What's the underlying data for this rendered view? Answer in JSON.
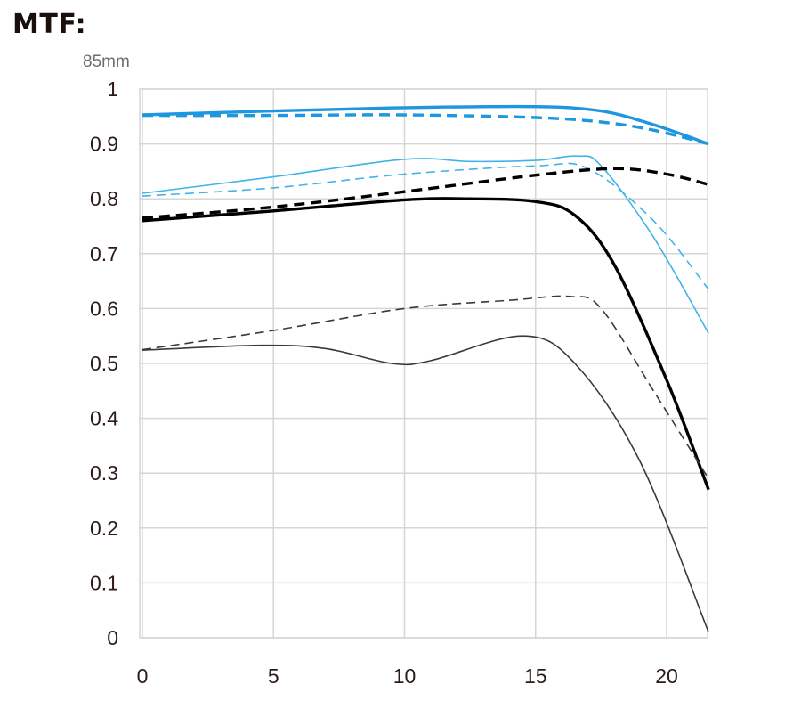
{
  "title": "MTF:",
  "chart_data": {
    "type": "line",
    "subtitle": "85mm",
    "xlabel": "",
    "ylabel": "",
    "xlim": [
      0,
      21.6
    ],
    "ylim": [
      0,
      1
    ],
    "xticks": [
      0,
      5,
      10,
      15,
      20
    ],
    "xtick_labels": [
      "0",
      "5",
      "10",
      "15",
      "20"
    ],
    "yticks": [
      0,
      0.1,
      0.2,
      0.3,
      0.4,
      0.5,
      0.6,
      0.7,
      0.8,
      0.9,
      1
    ],
    "ytick_labels": [
      "0",
      "0.1",
      "0.2",
      "0.3",
      "0.4",
      "0.5",
      "0.6",
      "0.7",
      "0.8",
      "0.9",
      "1"
    ],
    "grid": true,
    "series": [
      {
        "color": "#1e96e0",
        "style": "solid",
        "weight": "thick",
        "x": [
          0,
          5,
          10,
          15,
          17.5,
          19.5,
          21.6
        ],
        "y": [
          0.953,
          0.96,
          0.966,
          0.968,
          0.96,
          0.935,
          0.9
        ]
      },
      {
        "color": "#1e96e0",
        "style": "dashed",
        "weight": "thick",
        "x": [
          0,
          5,
          10,
          15,
          17.5,
          19.5,
          21.6
        ],
        "y": [
          0.952,
          0.952,
          0.953,
          0.948,
          0.94,
          0.925,
          0.9
        ]
      },
      {
        "color": "#41b4e6",
        "style": "solid",
        "weight": "thin",
        "x": [
          0,
          5,
          10,
          12.5,
          15,
          16.6,
          17.5,
          19.5,
          21.6
        ],
        "y": [
          0.81,
          0.84,
          0.872,
          0.868,
          0.87,
          0.878,
          0.86,
          0.73,
          0.555
        ]
      },
      {
        "color": "#41b4e6",
        "style": "dashed",
        "weight": "thin",
        "x": [
          0,
          5,
          10,
          15,
          17,
          19.5,
          21.6
        ],
        "y": [
          0.805,
          0.82,
          0.845,
          0.86,
          0.855,
          0.76,
          0.635
        ]
      },
      {
        "color": "#000000",
        "style": "solid",
        "weight": "thick",
        "x": [
          0,
          5,
          10,
          12.5,
          15,
          16.5,
          18,
          20,
          21.6
        ],
        "y": [
          0.76,
          0.778,
          0.798,
          0.8,
          0.795,
          0.77,
          0.68,
          0.47,
          0.27
        ]
      },
      {
        "color": "#000000",
        "style": "dashed",
        "weight": "thick",
        "x": [
          0,
          5,
          10,
          15,
          18,
          20,
          21.6
        ],
        "y": [
          0.765,
          0.785,
          0.813,
          0.843,
          0.855,
          0.845,
          0.826
        ]
      },
      {
        "color": "#3a3a3a",
        "style": "dashed",
        "weight": "thin",
        "x": [
          0,
          5,
          10,
          14,
          16.3,
          17.5,
          19.5,
          21.6
        ],
        "y": [
          0.525,
          0.56,
          0.6,
          0.615,
          0.622,
          0.6,
          0.45,
          0.29
        ]
      },
      {
        "color": "#3a3a3a",
        "style": "solid",
        "weight": "thin",
        "x": [
          0,
          4.5,
          7,
          9.5,
          11,
          14.5,
          16.5,
          19,
          21.6
        ],
        "y": [
          0.524,
          0.533,
          0.527,
          0.5,
          0.505,
          0.55,
          0.5,
          0.32,
          0.01
        ]
      }
    ]
  }
}
